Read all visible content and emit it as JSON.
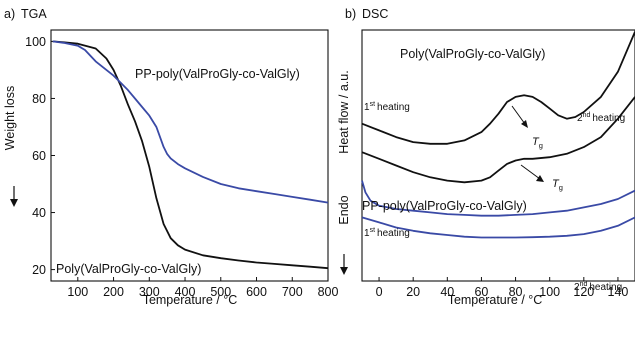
{
  "colors": {
    "black_series": "#111111",
    "blue_series": "#3a4aa6"
  },
  "chart_data": [
    {
      "panel": "a)",
      "title": "TGA",
      "type": "line",
      "xlabel": "Temperature /  °C",
      "ylabel": "Weight loss",
      "xlim": [
        25,
        800
      ],
      "ylim": [
        16,
        104
      ],
      "xticks": [
        "100",
        "200",
        "300",
        "400",
        "500",
        "600",
        "700",
        "800"
      ],
      "yticks": [
        "20",
        "40",
        "60",
        "80",
        "100"
      ],
      "grid": false,
      "series": [
        {
          "name": "Poly(ValProGly-co-ValGly)",
          "color": "#111111",
          "x": [
            30,
            60,
            100,
            150,
            180,
            200,
            220,
            240,
            260,
            280,
            300,
            320,
            340,
            360,
            380,
            400,
            450,
            500,
            550,
            600,
            650,
            700,
            750,
            800
          ],
          "y": [
            100,
            99.7,
            99.2,
            97.5,
            94,
            90,
            84.5,
            78,
            72,
            65,
            56,
            45,
            36,
            31,
            28.5,
            27,
            25,
            24,
            23.2,
            22.5,
            22,
            21.5,
            21,
            20.5
          ]
        },
        {
          "name": "PP-poly(ValProGly-co-ValGly)",
          "color": "#3a4aa6",
          "x": [
            30,
            60,
            100,
            120,
            150,
            180,
            200,
            220,
            240,
            260,
            280,
            300,
            320,
            340,
            350,
            360,
            380,
            400,
            450,
            500,
            550,
            600,
            650,
            700,
            750,
            800
          ],
          "y": [
            100,
            99.5,
            98.5,
            97,
            93,
            90,
            88,
            85.5,
            83,
            80,
            77,
            74,
            70,
            63,
            60.5,
            59,
            57,
            55.5,
            52.5,
            50,
            48.5,
            47.5,
            46.5,
            45.5,
            44.5,
            43.5
          ]
        }
      ]
    },
    {
      "panel": "b)",
      "title": "DSC",
      "type": "line",
      "xlabel": "Temperature /  °C",
      "ylabel": "Heat flow / a.u.",
      "ylabel_direction": "Endo",
      "xlim": [
        -10,
        150
      ],
      "xticks": [
        "0",
        "20",
        "40",
        "60",
        "80",
        "100",
        "120",
        "140"
      ],
      "yticks": [],
      "grid": false,
      "annotations": {
        "upper_group": "Poly(ValProGly-co-ValGly)",
        "lower_group": "PP-poly(ValProGly-co-ValGly)",
        "first_heating": "heating",
        "second_heating": "heating",
        "ordinal_1": "1",
        "ordinal_1_suffix": "st",
        "ordinal_2": "2",
        "ordinal_2_suffix": "nd",
        "tg_symbol": "T",
        "tg_subscript": "g"
      },
      "series": [
        {
          "name": "1st heating",
          "group": "Poly(ValProGly-co-ValGly)",
          "color": "#111111",
          "x": [
            -10,
            0,
            10,
            20,
            30,
            40,
            50,
            60,
            65,
            70,
            75,
            80,
            85,
            90,
            95,
            100,
            105,
            110,
            115,
            120,
            130,
            140,
            150
          ],
          "y": [
            0.94,
            0.9,
            0.86,
            0.83,
            0.82,
            0.82,
            0.84,
            0.89,
            0.94,
            1.0,
            1.07,
            1.1,
            1.11,
            1.1,
            1.07,
            1.03,
            0.99,
            0.97,
            0.98,
            1.01,
            1.1,
            1.25,
            1.49
          ]
        },
        {
          "name": "2nd heating",
          "group": "Poly(ValProGly-co-ValGly)",
          "color": "#111111",
          "x": [
            -10,
            0,
            10,
            20,
            30,
            40,
            50,
            60,
            65,
            70,
            75,
            80,
            85,
            90,
            100,
            110,
            120,
            130,
            140,
            150
          ],
          "y": [
            0.77,
            0.73,
            0.69,
            0.65,
            0.62,
            0.6,
            0.59,
            0.6,
            0.62,
            0.66,
            0.7,
            0.72,
            0.73,
            0.73,
            0.74,
            0.76,
            0.8,
            0.86,
            0.97,
            1.1
          ]
        },
        {
          "name": "1st heating",
          "group": "PP-poly(ValProGly-co-ValGly)",
          "color": "#3a4aa6",
          "x": [
            -10,
            -8,
            -5,
            0,
            10,
            20,
            30,
            40,
            50,
            60,
            70,
            80,
            90,
            100,
            110,
            120,
            130,
            140,
            150
          ],
          "y": [
            0.6,
            0.53,
            0.48,
            0.45,
            0.43,
            0.42,
            0.41,
            0.4,
            0.395,
            0.39,
            0.39,
            0.395,
            0.4,
            0.41,
            0.42,
            0.44,
            0.46,
            0.49,
            0.54
          ]
        },
        {
          "name": "2nd heating",
          "group": "PP-poly(ValProGly-co-ValGly)",
          "color": "#3a4aa6",
          "x": [
            -10,
            0,
            10,
            20,
            30,
            40,
            50,
            60,
            70,
            80,
            90,
            100,
            110,
            120,
            130,
            140,
            150
          ],
          "y": [
            0.38,
            0.35,
            0.32,
            0.3,
            0.285,
            0.275,
            0.265,
            0.26,
            0.26,
            0.26,
            0.262,
            0.265,
            0.27,
            0.28,
            0.3,
            0.33,
            0.38
          ]
        }
      ]
    }
  ]
}
